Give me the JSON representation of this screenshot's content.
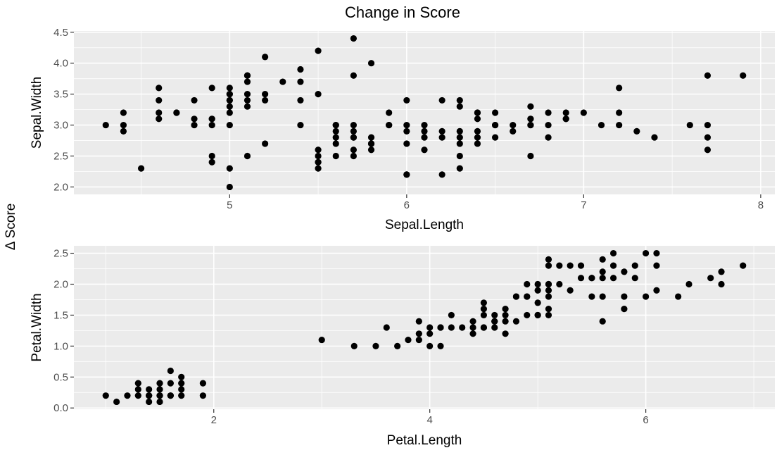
{
  "figure": {
    "title": "Change in Score",
    "shared_ylabel": "Δ Score"
  },
  "colors": {
    "panel_background": "#ebebeb",
    "grid": "#ffffff",
    "points": "#000000",
    "tick_text": "#4d4d4d"
  },
  "chart_data": [
    {
      "type": "scatter",
      "xlabel": "Sepal.Length",
      "ylabel": "Sepal.Width",
      "xlim": [
        4.12,
        8.08
      ],
      "ylim": [
        1.88,
        4.52
      ],
      "xticks": [
        5,
        6,
        7,
        8
      ],
      "yticks": [
        2.0,
        2.5,
        3.0,
        3.5,
        4.0,
        4.5
      ],
      "xtick_labels": [
        "5",
        "6",
        "7",
        "8"
      ],
      "ytick_labels": [
        "2.0",
        "2.5",
        "3.0",
        "3.5",
        "4.0",
        "4.5"
      ],
      "grid": true,
      "x": [
        4.3,
        4.4,
        4.4,
        4.4,
        4.5,
        4.6,
        4.6,
        4.6,
        4.6,
        4.7,
        4.7,
        4.8,
        4.8,
        4.8,
        4.9,
        4.9,
        4.9,
        4.9,
        4.9,
        4.9,
        5.0,
        5.0,
        5.0,
        5.0,
        5.0,
        5.0,
        5.0,
        5.0,
        5.0,
        5.0,
        5.1,
        5.1,
        5.1,
        5.1,
        5.1,
        5.1,
        5.1,
        5.2,
        5.2,
        5.2,
        5.2,
        5.3,
        5.4,
        5.4,
        5.4,
        5.4,
        5.5,
        5.5,
        5.5,
        5.5,
        5.5,
        5.5,
        5.5,
        5.6,
        5.6,
        5.6,
        5.6,
        5.6,
        5.6,
        5.7,
        5.7,
        5.7,
        5.7,
        5.7,
        5.7,
        5.7,
        5.7,
        5.8,
        5.8,
        5.8,
        5.8,
        5.8,
        5.9,
        5.9,
        5.9,
        6.0,
        6.0,
        6.0,
        6.0,
        6.0,
        6.0,
        6.1,
        6.1,
        6.1,
        6.1,
        6.2,
        6.2,
        6.2,
        6.2,
        6.3,
        6.3,
        6.3,
        6.3,
        6.3,
        6.3,
        6.3,
        6.4,
        6.4,
        6.4,
        6.4,
        6.4,
        6.4,
        6.5,
        6.5,
        6.5,
        6.5,
        6.6,
        6.6,
        6.7,
        6.7,
        6.7,
        6.7,
        6.7,
        6.7,
        6.8,
        6.8,
        6.8,
        6.9,
        6.9,
        6.9,
        7.0,
        7.1,
        7.2,
        7.2,
        7.2,
        7.3,
        7.4,
        7.6,
        7.7,
        7.7,
        7.7,
        7.7,
        7.9
      ],
      "y": [
        3.0,
        2.9,
        3.0,
        3.2,
        2.3,
        3.1,
        3.2,
        3.4,
        3.6,
        3.2,
        3.2,
        3.0,
        3.1,
        3.4,
        2.4,
        2.5,
        3.0,
        3.1,
        3.1,
        3.6,
        2.0,
        2.3,
        3.0,
        3.2,
        3.3,
        3.4,
        3.4,
        3.5,
        3.5,
        3.6,
        2.5,
        3.3,
        3.4,
        3.5,
        3.7,
        3.8,
        3.8,
        2.7,
        3.4,
        3.5,
        4.1,
        3.7,
        3.0,
        3.4,
        3.7,
        3.9,
        2.3,
        2.4,
        2.5,
        2.6,
        3.5,
        4.2,
        2.4,
        2.5,
        2.7,
        2.8,
        2.9,
        3.0,
        3.0,
        2.5,
        2.6,
        2.8,
        2.9,
        3.0,
        3.8,
        4.4,
        2.8,
        2.6,
        2.7,
        2.7,
        2.8,
        4.0,
        3.0,
        3.2,
        3.0,
        2.2,
        2.7,
        2.9,
        3.0,
        3.4,
        2.2,
        2.6,
        2.8,
        2.9,
        3.0,
        2.2,
        2.8,
        2.9,
        3.4,
        2.3,
        2.5,
        2.7,
        2.8,
        2.9,
        3.3,
        3.4,
        2.7,
        2.8,
        2.9,
        3.1,
        3.2,
        3.2,
        2.8,
        3.0,
        3.0,
        3.2,
        2.9,
        3.0,
        2.5,
        3.0,
        3.1,
        3.1,
        3.3,
        3.0,
        2.8,
        3.0,
        3.2,
        3.1,
        3.1,
        3.2,
        3.2,
        3.0,
        3.0,
        3.2,
        3.6,
        2.9,
        2.8,
        3.0,
        2.6,
        2.8,
        3.0,
        3.8,
        3.8
      ]
    },
    {
      "type": "scatter",
      "xlabel": "Petal.Length",
      "ylabel": "Petal.Width",
      "xlim": [
        0.705,
        7.195
      ],
      "ylim": [
        -0.02,
        2.62
      ],
      "xticks": [
        2,
        4,
        6
      ],
      "yticks": [
        0.0,
        0.5,
        1.0,
        1.5,
        2.0,
        2.5
      ],
      "xtick_labels": [
        "2",
        "4",
        "6"
      ],
      "ytick_labels": [
        "0.0",
        "0.5",
        "1.0",
        "1.5",
        "2.0",
        "2.5"
      ],
      "grid": true,
      "x": [
        1.0,
        1.1,
        1.2,
        1.3,
        1.3,
        1.3,
        1.4,
        1.4,
        1.4,
        1.4,
        1.5,
        1.5,
        1.5,
        1.5,
        1.5,
        1.6,
        1.6,
        1.6,
        1.6,
        1.7,
        1.7,
        1.7,
        1.7,
        1.9,
        1.9,
        3.0,
        3.3,
        3.5,
        3.6,
        3.7,
        3.8,
        3.9,
        3.9,
        3.9,
        4.0,
        4.0,
        4.0,
        4.1,
        4.1,
        4.1,
        4.2,
        4.2,
        4.3,
        4.4,
        4.4,
        4.4,
        4.5,
        4.5,
        4.5,
        4.5,
        4.5,
        4.6,
        4.6,
        4.6,
        4.6,
        4.7,
        4.7,
        4.7,
        4.7,
        4.8,
        4.8,
        4.8,
        4.9,
        4.9,
        4.9,
        4.9,
        5.0,
        5.0,
        5.0,
        5.0,
        5.0,
        5.1,
        5.1,
        5.1,
        5.1,
        5.1,
        5.1,
        5.1,
        5.1,
        5.2,
        5.2,
        5.3,
        5.3,
        5.4,
        5.4,
        5.5,
        5.5,
        5.5,
        5.6,
        5.6,
        5.6,
        5.6,
        5.6,
        5.7,
        5.7,
        5.7,
        5.8,
        5.8,
        5.8,
        5.9,
        5.9,
        6.0,
        6.0,
        6.1,
        6.1,
        6.1,
        6.3,
        6.4,
        6.6,
        6.7,
        6.7,
        6.9
      ],
      "y": [
        0.2,
        0.1,
        0.2,
        0.2,
        0.3,
        0.4,
        0.1,
        0.2,
        0.3,
        0.2,
        0.1,
        0.2,
        0.3,
        0.4,
        0.2,
        0.2,
        0.4,
        0.6,
        0.2,
        0.2,
        0.3,
        0.4,
        0.5,
        0.2,
        0.4,
        1.1,
        1.0,
        1.0,
        1.3,
        1.0,
        1.1,
        1.1,
        1.2,
        1.4,
        1.0,
        1.2,
        1.3,
        1.0,
        1.3,
        1.3,
        1.3,
        1.5,
        1.3,
        1.2,
        1.3,
        1.4,
        1.3,
        1.5,
        1.6,
        1.7,
        1.3,
        1.3,
        1.4,
        1.5,
        1.4,
        1.2,
        1.4,
        1.5,
        1.6,
        1.4,
        1.8,
        1.8,
        1.5,
        1.8,
        1.8,
        2.0,
        1.5,
        1.7,
        1.9,
        2.0,
        1.5,
        1.6,
        1.8,
        1.9,
        2.0,
        2.3,
        2.4,
        1.5,
        2.0,
        2.0,
        2.3,
        1.9,
        2.3,
        2.3,
        2.1,
        1.8,
        2.1,
        2.1,
        1.4,
        1.8,
        2.2,
        2.4,
        2.1,
        2.1,
        2.3,
        2.5,
        1.6,
        1.8,
        2.2,
        2.1,
        2.3,
        1.8,
        2.5,
        1.9,
        2.3,
        2.5,
        1.8,
        2.0,
        2.1,
        2.0,
        2.2,
        2.3
      ]
    }
  ]
}
